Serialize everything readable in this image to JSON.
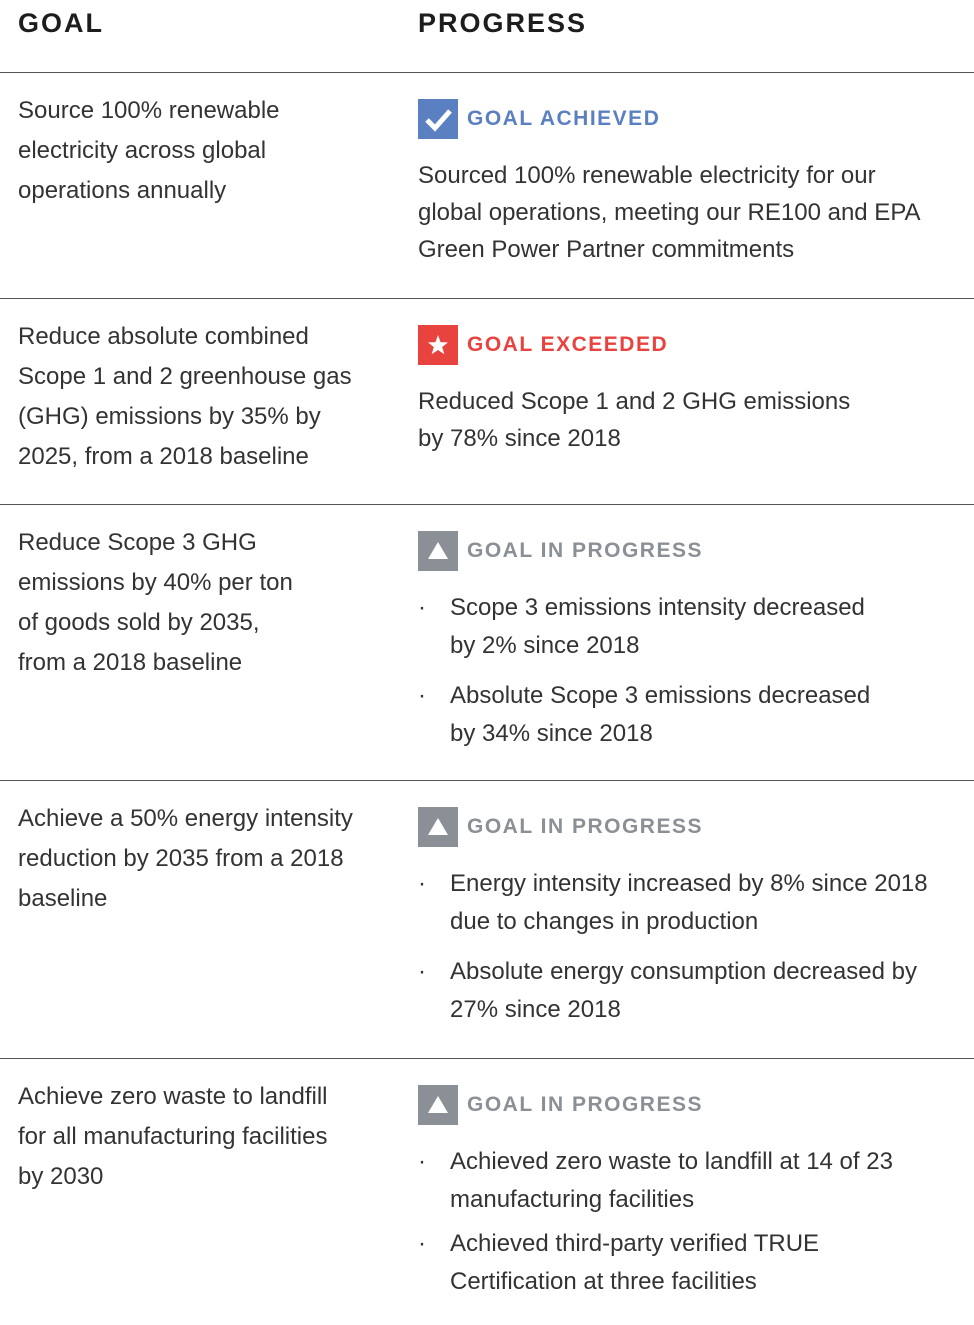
{
  "header": {
    "goal": "GOAL",
    "progress": "PROGRESS"
  },
  "rows": [
    {
      "goal": "Source 100% renewable\nelectricity across global\noperations annually",
      "status": "GOAL ACHIEVED",
      "text": "Sourced 100% renewable electricity for our\nglobal operations, meeting our RE100 and EPA\nGreen Power Partner commitments"
    },
    {
      "goal": "Reduce absolute combined\nScope 1 and 2 greenhouse gas\n(GHG) emissions by 35% by\n2025, from a 2018 baseline",
      "status": "GOAL EXCEEDED",
      "text": "Reduced Scope 1 and 2 GHG emissions\nby 78% since 2018"
    },
    {
      "goal": "Reduce Scope 3 GHG\nemissions by 40% per ton\nof goods sold by 2035,\nfrom a 2018 baseline",
      "status": "GOAL IN PROGRESS",
      "bullets": [
        "Scope 3 emissions intensity decreased\nby 2% since 2018",
        "Absolute Scope 3 emissions decreased\nby 34% since 2018"
      ]
    },
    {
      "goal": "Achieve a 50% energy intensity\nreduction by 2035 from a 2018\nbaseline",
      "status": "GOAL IN PROGRESS",
      "bullets": [
        "Energy intensity increased by 8% since 2018\ndue to changes in production",
        "Absolute energy consumption decreased by\n27% since 2018"
      ]
    },
    {
      "goal": "Achieve zero waste to landfill\nfor all manufacturing facilities\nby 2030",
      "status": "GOAL IN PROGRESS",
      "bullets": [
        "Achieved zero waste to landfill at 14 of 23\nmanufacturing facilities",
        "Achieved third-party verified TRUE\nCertification at three facilities"
      ]
    }
  ]
}
